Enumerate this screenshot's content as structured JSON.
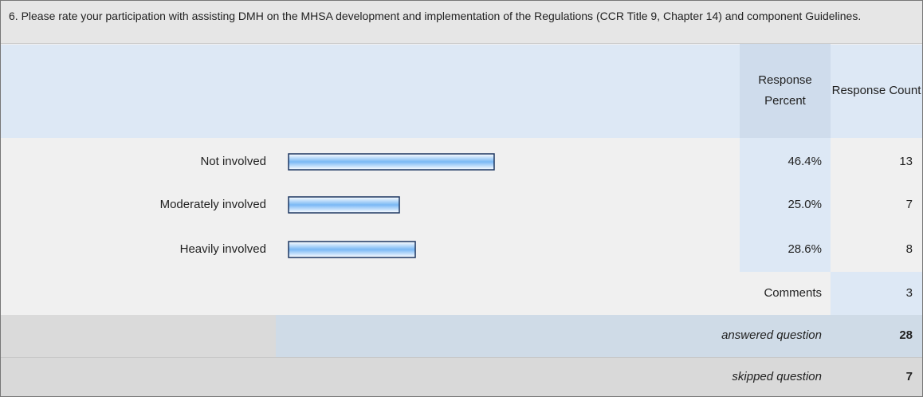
{
  "chart_data": {
    "type": "bar",
    "orientation": "horizontal",
    "title": "6. Please rate your participation with assisting DMH on the MHSA development and implementation of the Regulations (CCR Title 9, Chapter 14) and component Guidelines.",
    "column_headers": [
      "Response Percent",
      "Response Count"
    ],
    "categories": [
      "Not involved",
      "Moderately involved",
      "Heavily involved"
    ],
    "values": [
      46.4,
      25.0,
      28.6
    ],
    "value_labels": [
      "46.4%",
      "25.0%",
      "28.6%"
    ],
    "counts": [
      13,
      7,
      8
    ],
    "xlim": [
      0,
      100
    ],
    "color": "#7ab8f5"
  },
  "comments": {
    "label": "Comments",
    "count": 3
  },
  "answered": {
    "label": "answered question",
    "count": 28
  },
  "skipped": {
    "label": "skipped question",
    "count": 7
  }
}
